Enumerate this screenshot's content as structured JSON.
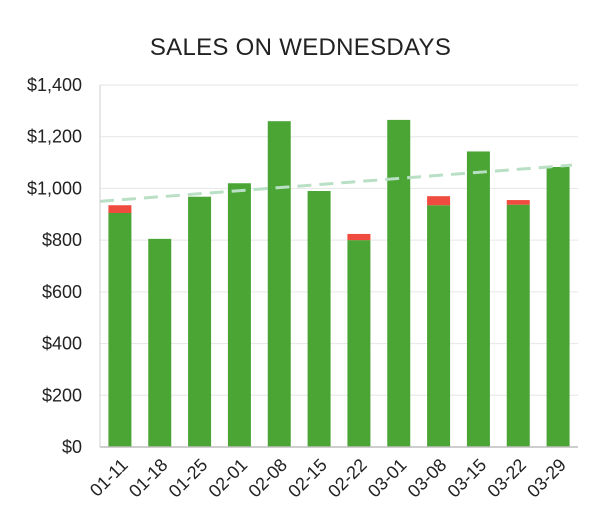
{
  "chart_data": {
    "type": "bar",
    "title": "SALES ON WEDNESDAYS",
    "xlabel": "",
    "ylabel": "",
    "ylim": [
      0,
      1400
    ],
    "y_ticks": [
      "$0",
      "$200",
      "$400",
      "$600",
      "$800",
      "$1,000",
      "$1,200",
      "$1,400"
    ],
    "y_tick_values": [
      0,
      200,
      400,
      600,
      800,
      1000,
      1200,
      1400
    ],
    "categories": [
      "01-11",
      "01-18",
      "01-25",
      "02-01",
      "02-08",
      "02-15",
      "02-22",
      "03-01",
      "03-08",
      "03-15",
      "03-22",
      "03-29"
    ],
    "stacked": true,
    "series": [
      {
        "color": "#4aa535",
        "values": [
          905,
          805,
          968,
          1020,
          1260,
          990,
          800,
          1265,
          935,
          1143,
          937,
          1083
        ]
      },
      {
        "color": "#f04b3f",
        "values": [
          30,
          0,
          0,
          0,
          0,
          0,
          24,
          0,
          35,
          0,
          18,
          0
        ]
      }
    ],
    "trendline": {
      "color": "#b9dfc4",
      "style": "dashed",
      "start": 950,
      "end": 1090
    },
    "grid": true,
    "legend": "none"
  }
}
